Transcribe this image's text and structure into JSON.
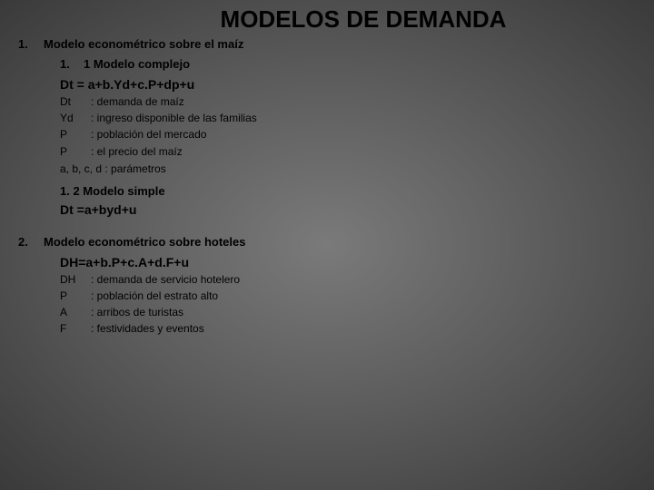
{
  "title": "MODELOS DE DEMANDA",
  "sections": [
    {
      "num": "1.",
      "heading": "Modelo econométrico sobre el maíz",
      "sub_num": "1.",
      "sub_title": "1 Modelo complejo",
      "equation": "Dt = a+b.Yd+c.P+dp+u",
      "defs": [
        {
          "sym": "Dt",
          "txt": ": demanda de maíz"
        },
        {
          "sym": "Yd",
          "txt": ": ingreso disponible de las familias"
        },
        {
          "sym": "P",
          "txt": ": población del mercado"
        },
        {
          "sym": "P",
          "txt": ": el precio del maíz"
        }
      ],
      "params_line": "a, b, c, d : parámetros",
      "sub2_title": "1. 2 Modelo simple",
      "equation2": "Dt =a+byd+u"
    },
    {
      "num": "2.",
      "heading": "Modelo econométrico sobre hoteles",
      "equation": "DH=a+b.P+c.A+d.F+u",
      "defs": [
        {
          "sym": "DH",
          "txt": ": demanda de servicio hotelero"
        },
        {
          "sym": "P",
          "txt": ": población del estrato alto"
        },
        {
          "sym": "A",
          "txt": ": arribos de turistas"
        },
        {
          "sym": "F",
          "txt": ": festividades y eventos"
        }
      ]
    }
  ]
}
